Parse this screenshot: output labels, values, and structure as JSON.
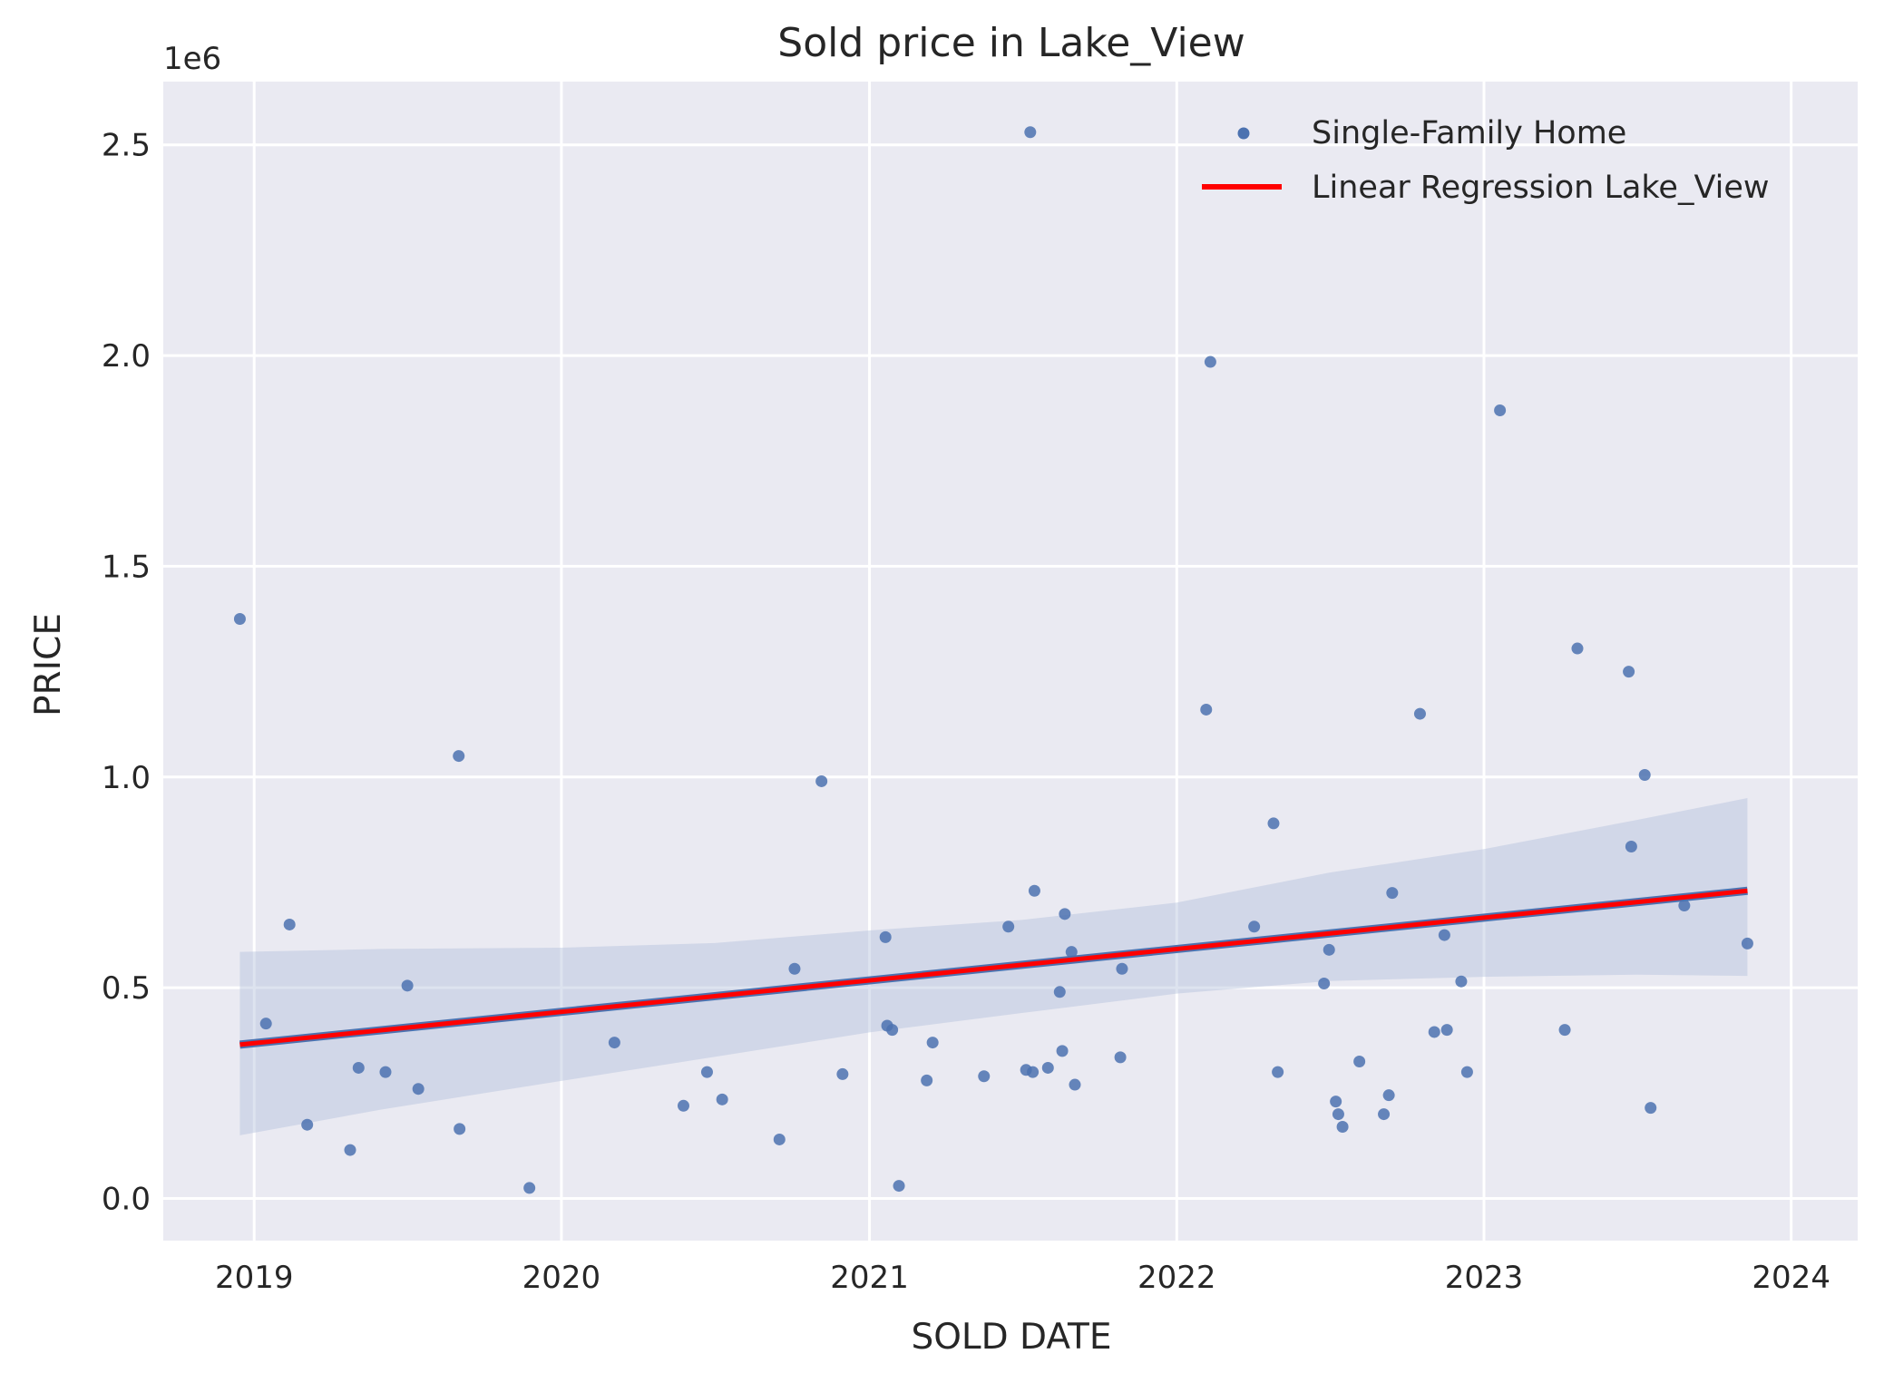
{
  "chart_data": {
    "type": "scatter",
    "title": "Sold price in Lake_View",
    "xlabel": "SOLD DATE",
    "ylabel": "PRICE",
    "y_offset_label": "1e6",
    "x_axis_type": "date",
    "xlim": [
      "2018-09-15",
      "2024-03-20"
    ],
    "ylim": [
      -100000,
      2650000
    ],
    "x_ticks": [
      "2019",
      "2020",
      "2021",
      "2022",
      "2023",
      "2024"
    ],
    "y_ticks": [
      "0.0",
      "0.5",
      "1.0",
      "1.5",
      "2.0",
      "2.5"
    ],
    "y_tick_values": [
      0,
      500000,
      1000000,
      1500000,
      2000000,
      2500000
    ],
    "grid": true,
    "legend_position": "top-right",
    "colors": {
      "background": "#eaeaf2",
      "grid": "#ffffff",
      "points": "#4c72b0",
      "regression": "#ff0000",
      "band": "#b3c0dc"
    },
    "series": [
      {
        "name": "Single-Family Home",
        "type": "scatter",
        "points": [
          [
            "2018-12-15",
            1375000
          ],
          [
            "2019-01-15",
            415000
          ],
          [
            "2019-02-12",
            650000
          ],
          [
            "2019-03-05",
            175000
          ],
          [
            "2019-04-25",
            115000
          ],
          [
            "2019-05-05",
            310000
          ],
          [
            "2019-06-06",
            300000
          ],
          [
            "2019-07-02",
            505000
          ],
          [
            "2019-07-15",
            260000
          ],
          [
            "2019-09-01",
            1050000
          ],
          [
            "2019-09-02",
            165000
          ],
          [
            "2019-11-24",
            25000
          ],
          [
            "2020-03-04",
            370000
          ],
          [
            "2020-05-25",
            220000
          ],
          [
            "2020-06-22",
            300000
          ],
          [
            "2020-07-10",
            235000
          ],
          [
            "2020-09-16",
            140000
          ],
          [
            "2020-10-04",
            545000
          ],
          [
            "2020-11-05",
            990000
          ],
          [
            "2020-11-30",
            295000
          ],
          [
            "2021-01-20",
            620000
          ],
          [
            "2021-01-22",
            410000
          ],
          [
            "2021-01-28",
            400000
          ],
          [
            "2021-02-05",
            30000
          ],
          [
            "2021-03-10",
            280000
          ],
          [
            "2021-03-17",
            370000
          ],
          [
            "2021-05-17",
            290000
          ],
          [
            "2021-06-15",
            645000
          ],
          [
            "2021-07-06",
            305000
          ],
          [
            "2021-07-11",
            2530000
          ],
          [
            "2021-07-14",
            300000
          ],
          [
            "2021-07-16",
            730000
          ],
          [
            "2021-08-01",
            310000
          ],
          [
            "2021-08-15",
            490000
          ],
          [
            "2021-08-18",
            350000
          ],
          [
            "2021-08-21",
            675000
          ],
          [
            "2021-08-29",
            585000
          ],
          [
            "2021-09-02",
            270000
          ],
          [
            "2021-10-26",
            335000
          ],
          [
            "2021-10-28",
            545000
          ],
          [
            "2022-02-05",
            1160000
          ],
          [
            "2022-02-10",
            1985000
          ],
          [
            "2022-04-03",
            645000
          ],
          [
            "2022-04-26",
            890000
          ],
          [
            "2022-05-01",
            300000
          ],
          [
            "2022-06-25",
            510000
          ],
          [
            "2022-07-01",
            590000
          ],
          [
            "2022-07-09",
            230000
          ],
          [
            "2022-07-12",
            200000
          ],
          [
            "2022-07-17",
            170000
          ],
          [
            "2022-08-06",
            325000
          ],
          [
            "2022-09-04",
            200000
          ],
          [
            "2022-09-10",
            245000
          ],
          [
            "2022-09-14",
            725000
          ],
          [
            "2022-10-17",
            1150000
          ],
          [
            "2022-11-03",
            395000
          ],
          [
            "2022-11-15",
            625000
          ],
          [
            "2022-11-18",
            400000
          ],
          [
            "2022-12-05",
            515000
          ],
          [
            "2022-12-12",
            300000
          ],
          [
            "2023-01-20",
            1870000
          ],
          [
            "2023-04-07",
            400000
          ],
          [
            "2023-04-22",
            1305000
          ],
          [
            "2023-06-22",
            1250000
          ],
          [
            "2023-06-25",
            835000
          ],
          [
            "2023-07-11",
            1005000
          ],
          [
            "2023-07-18",
            215000
          ],
          [
            "2023-08-27",
            695000
          ],
          [
            "2023-11-10",
            605000
          ]
        ]
      },
      {
        "name": "Linear Regression Lake_View",
        "type": "line",
        "points": [
          [
            "2018-12-15",
            365000
          ],
          [
            "2023-11-10",
            730000
          ]
        ]
      }
    ],
    "confidence_band": {
      "x": [
        "2018-12-15",
        "2019-06-01",
        "2020-01-01",
        "2020-07-01",
        "2021-01-01",
        "2021-07-01",
        "2022-01-01",
        "2022-07-01",
        "2023-01-01",
        "2023-07-01",
        "2023-11-10"
      ],
      "upper": [
        585000,
        592000,
        595000,
        606000,
        636000,
        661000,
        702000,
        773000,
        829000,
        898000,
        950000
      ],
      "lower": [
        150000,
        211000,
        279000,
        336000,
        394000,
        440000,
        486000,
        516000,
        526000,
        531000,
        528000
      ]
    }
  }
}
